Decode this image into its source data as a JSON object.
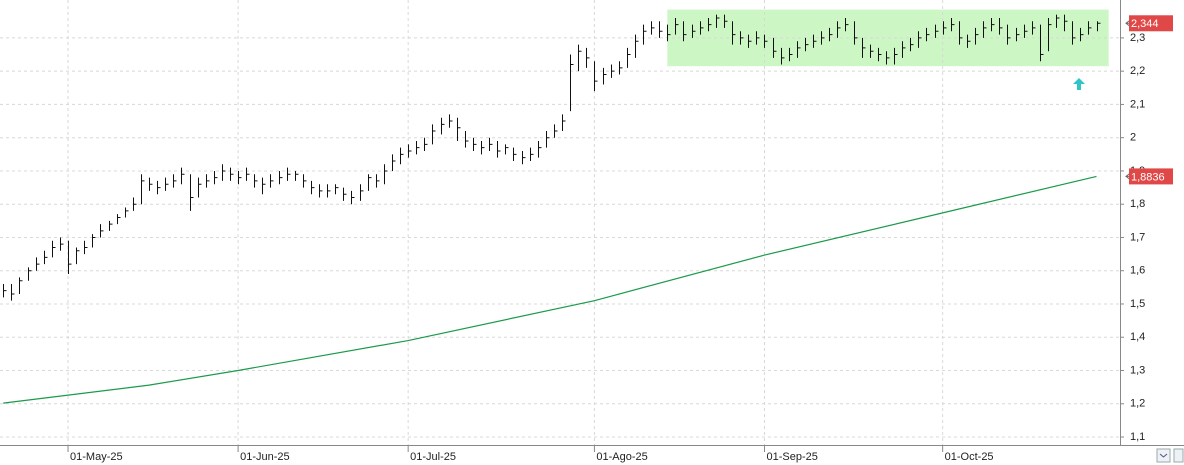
{
  "chart_data": {
    "type": "hlc",
    "xlim": [
      -0.4,
      137.9
    ],
    "ylim": [
      1.076,
      2.414
    ],
    "grid": true,
    "xticks": [
      {
        "value": 8,
        "label": "01-May-25"
      },
      {
        "value": 29,
        "label": "01-Jun-25"
      },
      {
        "value": 50,
        "label": "01-Jul-25"
      },
      {
        "value": 73,
        "label": "01-Ago-25"
      },
      {
        "value": 94,
        "label": "01-Sep-25"
      },
      {
        "value": 116,
        "label": "01-Oct-25"
      }
    ],
    "yticks": [
      {
        "value": 1.1,
        "label": "1,1"
      },
      {
        "value": 1.2,
        "label": "1,2"
      },
      {
        "value": 1.3,
        "label": "1,3"
      },
      {
        "value": 1.4,
        "label": "1,4"
      },
      {
        "value": 1.5,
        "label": "1,5"
      },
      {
        "value": 1.6,
        "label": "1,6"
      },
      {
        "value": 1.7,
        "label": "1,7"
      },
      {
        "value": 1.8,
        "label": "1,8"
      },
      {
        "value": 1.9,
        "label": "1,9"
      },
      2,
      {
        "value": 2.1,
        "label": "2,1"
      },
      {
        "value": 2.2,
        "label": "2,2"
      },
      {
        "value": 2.3,
        "label": "2,3"
      }
    ],
    "highlight": {
      "x": [
        82,
        136.5
      ],
      "y": [
        2.215,
        2.385
      ],
      "color": "#ccf7c4"
    },
    "bars": {
      "color": "#111111",
      "label_color": "#e04848",
      "last_label": "2,344",
      "high": [
        1.56,
        1.56,
        1.58,
        1.61,
        1.64,
        1.66,
        1.69,
        1.7,
        1.69,
        1.67,
        1.69,
        1.71,
        1.74,
        1.75,
        1.77,
        1.79,
        1.82,
        1.89,
        1.88,
        1.87,
        1.88,
        1.89,
        1.91,
        1.89,
        1.88,
        1.89,
        1.9,
        1.92,
        1.91,
        1.9,
        1.91,
        1.89,
        1.88,
        1.89,
        1.9,
        1.91,
        1.9,
        1.89,
        1.87,
        1.86,
        1.86,
        1.86,
        1.85,
        1.84,
        1.86,
        1.89,
        1.89,
        1.92,
        1.95,
        1.97,
        1.98,
        1.99,
        2.0,
        2.04,
        2.06,
        2.07,
        2.06,
        2.02,
        2.0,
        1.99,
        2.0,
        1.99,
        1.98,
        1.97,
        1.96,
        1.97,
        1.99,
        2.02,
        2.04,
        2.07,
        2.25,
        2.28,
        2.27,
        2.23,
        2.21,
        2.22,
        2.23,
        2.27,
        2.31,
        2.34,
        2.35,
        2.35,
        2.34,
        2.36,
        2.35,
        2.34,
        2.35,
        2.36,
        2.37,
        2.37,
        2.35,
        2.32,
        2.31,
        2.32,
        2.31,
        2.3,
        2.27,
        2.27,
        2.29,
        2.3,
        2.31,
        2.32,
        2.33,
        2.35,
        2.36,
        2.35,
        2.3,
        2.28,
        2.27,
        2.26,
        2.27,
        2.29,
        2.3,
        2.32,
        2.33,
        2.34,
        2.35,
        2.36,
        2.35,
        2.31,
        2.33,
        2.35,
        2.36,
        2.36,
        2.34,
        2.33,
        2.34,
        2.35,
        2.34,
        2.36,
        2.37,
        2.37,
        2.35,
        2.33,
        2.35,
        2.35
      ],
      "low": [
        1.52,
        1.51,
        1.53,
        1.57,
        1.6,
        1.62,
        1.64,
        1.66,
        1.59,
        1.62,
        1.65,
        1.67,
        1.7,
        1.72,
        1.74,
        1.76,
        1.78,
        1.8,
        1.84,
        1.83,
        1.84,
        1.85,
        1.86,
        1.78,
        1.82,
        1.85,
        1.86,
        1.87,
        1.87,
        1.86,
        1.87,
        1.85,
        1.83,
        1.85,
        1.86,
        1.87,
        1.87,
        1.85,
        1.83,
        1.82,
        1.82,
        1.83,
        1.81,
        1.8,
        1.81,
        1.84,
        1.85,
        1.86,
        1.9,
        1.92,
        1.94,
        1.95,
        1.96,
        1.98,
        2.01,
        2.03,
        1.99,
        1.97,
        1.96,
        1.95,
        1.96,
        1.94,
        1.95,
        1.93,
        1.92,
        1.93,
        1.94,
        1.97,
        2.0,
        2.02,
        2.08,
        2.2,
        2.21,
        2.14,
        2.16,
        2.18,
        2.19,
        2.21,
        2.24,
        2.28,
        2.31,
        2.3,
        2.29,
        2.31,
        2.29,
        2.3,
        2.31,
        2.32,
        2.33,
        2.33,
        2.28,
        2.28,
        2.27,
        2.28,
        2.27,
        2.24,
        2.22,
        2.23,
        2.24,
        2.26,
        2.27,
        2.28,
        2.29,
        2.3,
        2.32,
        2.28,
        2.24,
        2.24,
        2.23,
        2.22,
        2.22,
        2.24,
        2.26,
        2.27,
        2.29,
        2.3,
        2.31,
        2.32,
        2.28,
        2.27,
        2.28,
        2.3,
        2.32,
        2.31,
        2.28,
        2.29,
        2.3,
        2.31,
        2.23,
        2.26,
        2.33,
        2.32,
        2.28,
        2.29,
        2.31,
        2.32
      ],
      "close": [
        1.54,
        1.53,
        1.57,
        1.6,
        1.62,
        1.64,
        1.67,
        1.68,
        1.62,
        1.66,
        1.67,
        1.7,
        1.72,
        1.74,
        1.76,
        1.78,
        1.8,
        1.87,
        1.86,
        1.85,
        1.86,
        1.87,
        1.89,
        1.82,
        1.86,
        1.87,
        1.88,
        1.9,
        1.89,
        1.88,
        1.89,
        1.87,
        1.86,
        1.87,
        1.88,
        1.89,
        1.89,
        1.87,
        1.85,
        1.84,
        1.84,
        1.85,
        1.83,
        1.82,
        1.84,
        1.88,
        1.87,
        1.9,
        1.93,
        1.95,
        1.96,
        1.97,
        1.98,
        2.02,
        2.04,
        2.05,
        2.03,
        1.99,
        1.98,
        1.97,
        1.98,
        1.96,
        1.97,
        1.95,
        1.94,
        1.95,
        1.97,
        2.0,
        2.02,
        2.05,
        2.22,
        2.26,
        2.24,
        2.17,
        2.19,
        2.2,
        2.21,
        2.25,
        2.29,
        2.32,
        2.33,
        2.32,
        2.31,
        2.34,
        2.31,
        2.32,
        2.33,
        2.34,
        2.36,
        2.35,
        2.31,
        2.3,
        2.29,
        2.3,
        2.29,
        2.26,
        2.24,
        2.25,
        2.27,
        2.28,
        2.29,
        2.3,
        2.31,
        2.33,
        2.34,
        2.3,
        2.27,
        2.26,
        2.25,
        2.24,
        2.25,
        2.27,
        2.28,
        2.3,
        2.31,
        2.32,
        2.33,
        2.34,
        2.3,
        2.29,
        2.31,
        2.33,
        2.34,
        2.33,
        2.3,
        2.31,
        2.32,
        2.33,
        2.25,
        2.34,
        2.36,
        2.35,
        2.3,
        2.31,
        2.33,
        2.344
      ]
    },
    "series": [
      {
        "color": "#1a9a4a",
        "label_color": "#e04848",
        "last_label": "1,8836",
        "x": [
          0,
          18,
          29,
          50,
          73,
          94,
          116,
          135
        ],
        "values": [
          1.202,
          1.256,
          1.3,
          1.39,
          1.51,
          1.647,
          1.774,
          1.8836
        ]
      }
    ]
  }
}
